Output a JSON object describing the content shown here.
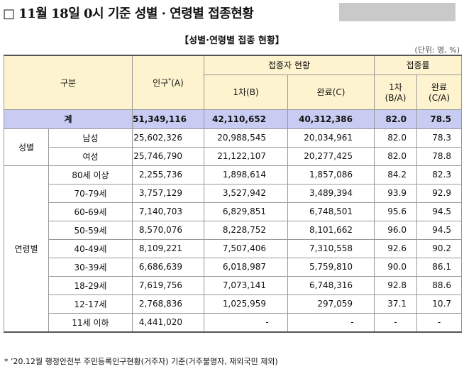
{
  "title": "□ 11월 18일 0시 기준 성별 · 연령별 접종현황",
  "subtitle": "【성별·연령별 접종 현황】",
  "unit": "(단위: 명, %)",
  "table": {
    "header": {
      "category": "구분",
      "population": "인구",
      "population_mark": "*",
      "population_suffix": "(A)",
      "vaccinated": "접종자 현황",
      "dose1": "1차(B)",
      "complete": "완료(C)",
      "rate": "접종률",
      "rate1": "1차",
      "rate1_formula": "(B/A)",
      "rate2": "완료",
      "rate2_formula": "(C/A)"
    },
    "total": [
      "계",
      "51,349,116",
      "42,110,652",
      "40,312,386",
      "82.0",
      "78.5"
    ],
    "groups": [
      {
        "label": "성별",
        "rows": [
          [
            "남성",
            "25,602,326",
            "20,988,545",
            "20,034,961",
            "82.0",
            "78.3"
          ],
          [
            "여성",
            "25,746,790",
            "21,122,107",
            "20,277,425",
            "82.0",
            "78.8"
          ]
        ]
      },
      {
        "label": "연령별",
        "rows": [
          [
            "80세 이상",
            "2,255,736",
            "1,898,614",
            "1,857,086",
            "84.2",
            "82.3"
          ],
          [
            "70-79세",
            "3,757,129",
            "3,527,942",
            "3,489,394",
            "93.9",
            "92.9"
          ],
          [
            "60-69세",
            "7,140,703",
            "6,829,851",
            "6,748,501",
            "95.6",
            "94.5"
          ],
          [
            "50-59세",
            "8,570,076",
            "8,228,752",
            "8,101,662",
            "96.0",
            "94.5"
          ],
          [
            "40-49세",
            "8,109,221",
            "7,507,406",
            "7,310,558",
            "92.6",
            "90.2"
          ],
          [
            "30-39세",
            "6,686,639",
            "6,018,987",
            "5,759,810",
            "90.0",
            "86.1"
          ],
          [
            "18-29세",
            "7,619,756",
            "7,073,141",
            "6,748,316",
            "92.8",
            "88.6"
          ],
          [
            "12-17세",
            "2,768,836",
            "1,025,959",
            "297,059",
            "37.1",
            "10.7"
          ],
          [
            "11세 이하",
            "4,441,020",
            "-",
            "-",
            "-",
            "-"
          ]
        ]
      }
    ]
  },
  "footnote": "* ’20.12월 행정안전부 주민등록인구현황(거주자) 기준(거주불명자, 재외국민 제외)"
}
